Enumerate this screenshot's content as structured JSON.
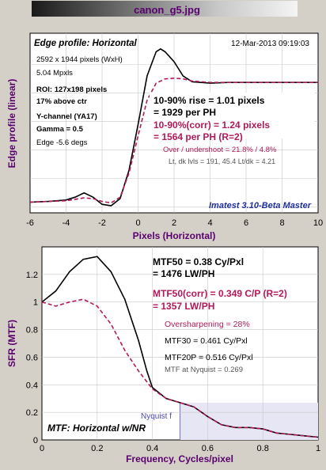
{
  "header": {
    "title": "canon_g5.jpg"
  },
  "chart_data": [
    {
      "type": "line",
      "title": "Edge profile: Horizontal",
      "timestamp": "12-Mar-2013 09:19:03",
      "xlabel": "Pixels (Horizontal)",
      "ylabel": "Edge profile (linear)",
      "xlim": [
        -6,
        10
      ],
      "xticks": [
        "-6",
        "-4",
        "-2",
        "0",
        "2",
        "4",
        "6",
        "8",
        "10"
      ],
      "grid": true,
      "info": [
        "2592 x 1944 pixels (WxH)",
        "5.04 Mpxls",
        "ROI:  127x198 pixels",
        "17% above ctr",
        "Y-channel  (YA17)",
        "Gamma = 0.5",
        "Edge -5.6 degs"
      ],
      "results": {
        "rise1": "10-90% rise = 1.01 pixels",
        "rise2": "= 1929 per PH",
        "corr1": "10-90%(corr) = 1.24 pixels",
        "corr2": "= 1564 per PH   (R=2)",
        "overshoot": "Over / undershoot = 21.8% / 4.8%",
        "levels": "Lt, dk lvls = 191, 45.4    Lt/dk = 4.21"
      },
      "watermark": "Imatest 3.10-Beta Master",
      "series": [
        {
          "color": "#000000",
          "style": "solid",
          "x": [
            -6,
            -5,
            -4,
            -3.5,
            -3,
            -2.5,
            -2,
            -1.5,
            -1,
            -0.5,
            0,
            0.5,
            1,
            1.25,
            1.5,
            2,
            2.5,
            3,
            4,
            5,
            6,
            8,
            10
          ],
          "y": [
            0.035,
            0.04,
            0.05,
            0.07,
            0.1,
            0.07,
            0.02,
            0.01,
            0.06,
            0.26,
            0.58,
            0.92,
            1.09,
            1.11,
            1.09,
            1.02,
            0.92,
            0.88,
            0.87,
            0.875,
            0.875,
            0.875,
            0.875
          ]
        },
        {
          "color": "#b0195a",
          "style": "dashed",
          "x": [
            -6,
            -4,
            -3,
            -2.5,
            -2,
            -1.5,
            -1,
            -0.5,
            0,
            0.5,
            1,
            1.5,
            2,
            2.5,
            3,
            4,
            5,
            6,
            8,
            10
          ],
          "y": [
            0.035,
            0.045,
            0.065,
            0.06,
            0.04,
            0.03,
            0.07,
            0.24,
            0.5,
            0.75,
            0.87,
            0.9,
            0.905,
            0.9,
            0.885,
            0.875,
            0.875,
            0.875,
            0.875,
            0.875
          ]
        }
      ]
    },
    {
      "type": "line",
      "xlabel": "Frequency, Cycles/pixel",
      "ylabel": "SFR (MTF)",
      "xlim": [
        0,
        1
      ],
      "ylim": [
        0,
        1.4
      ],
      "xticks": [
        "0",
        "0.2",
        "0.4",
        "0.6",
        "0.8",
        "1"
      ],
      "yticks": [
        "0",
        "0.2",
        "0.4",
        "0.6",
        "0.8",
        "1",
        "1.2"
      ],
      "grid": true,
      "results": {
        "mtf50_1": "MTF50 = 0.38 Cy/Pxl",
        "mtf50_2": "= 1476 LW/PH",
        "corr1": "MTF50(corr) = 0.349 C/P  (R=2)",
        "corr2": "= 1357 LW/PH",
        "oversharp": "Oversharpening = 28%",
        "mtf30": "MTF30 = 0.461 Cy/Pxl",
        "mtf20p": "MTF20P = 0.516 Cy/Pxl",
        "nyq": "MTF at Nyquist = 0.269"
      },
      "nyquist_label": "Nyquist f",
      "nyquist_x": 0.5,
      "bottom_label": "MTF: Horizontal w/NR",
      "series": [
        {
          "color": "#000000",
          "style": "solid",
          "x": [
            0,
            0.05,
            0.1,
            0.15,
            0.2,
            0.25,
            0.3,
            0.35,
            0.38,
            0.4,
            0.45,
            0.5,
            0.55,
            0.6,
            0.65,
            0.7,
            0.75,
            0.8,
            0.85,
            0.9,
            0.95,
            1.0
          ],
          "y": [
            1.0,
            1.08,
            1.22,
            1.31,
            1.33,
            1.22,
            1.02,
            0.72,
            0.5,
            0.38,
            0.3,
            0.27,
            0.24,
            0.17,
            0.11,
            0.09,
            0.09,
            0.08,
            0.05,
            0.04,
            0.03,
            0.02
          ]
        },
        {
          "color": "#b0195a",
          "style": "dashed",
          "x": [
            0,
            0.05,
            0.1,
            0.15,
            0.2,
            0.25,
            0.3,
            0.35,
            0.4,
            0.45,
            0.5,
            0.55,
            0.6,
            0.65,
            0.7,
            0.75,
            0.8,
            0.85,
            0.9,
            0.95,
            1.0
          ],
          "y": [
            1.0,
            0.97,
            1.0,
            1.02,
            0.97,
            0.84,
            0.65,
            0.5,
            0.37,
            0.3,
            0.27,
            0.24,
            0.17,
            0.11,
            0.09,
            0.09,
            0.08,
            0.05,
            0.04,
            0.03,
            0.02
          ]
        }
      ]
    }
  ],
  "colors": {
    "background": "#d4d0c8",
    "title": "#5a006e",
    "accent": "#b0195a",
    "watermark": "#1c2f9c",
    "nyquist": "#7f7fd6"
  }
}
